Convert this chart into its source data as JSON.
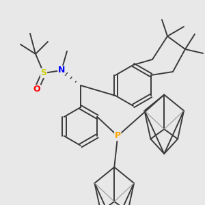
{
  "bg_color": "#e8e8e8",
  "atom_colors": {
    "S": "#cccc00",
    "N": "#0000ff",
    "O": "#ff0000",
    "P": "#ffa500",
    "C": "#3a3a3a"
  },
  "line_color": "#3a3a3a",
  "line_width": 1.4
}
